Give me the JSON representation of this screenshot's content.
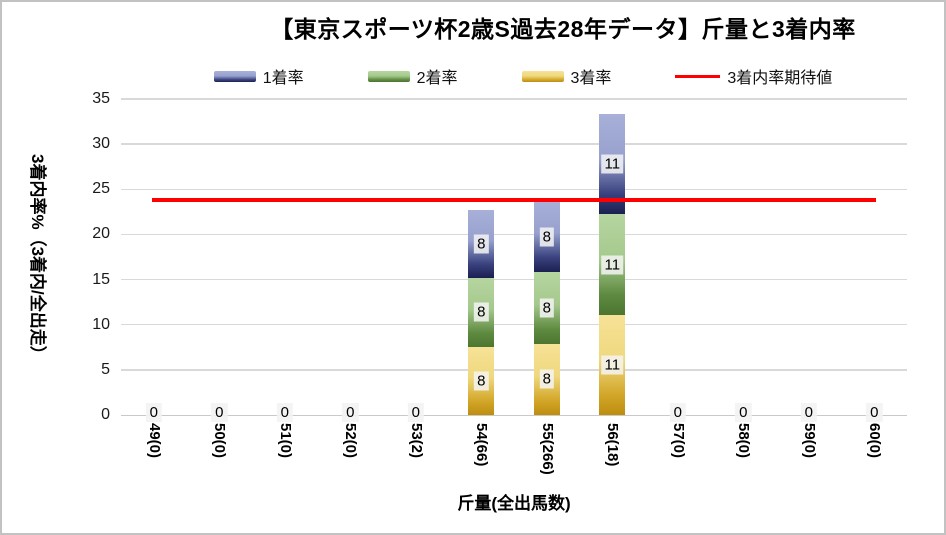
{
  "chart_data": {
    "type": "bar",
    "stacked": true,
    "title": "【東京スポーツ杯2歳S過去28年データ】斤量と3着内率",
    "xlabel": "斤量(全出馬数)",
    "ylabel": "3着内率%（3着内/全出走）",
    "ylim": [
      0,
      35
    ],
    "yticks": [
      0,
      5,
      10,
      15,
      20,
      25,
      30,
      35
    ],
    "grid": true,
    "legend_position": "top",
    "categories": [
      "49(0)",
      "50(0)",
      "51(0)",
      "52(0)",
      "53(2)",
      "54(66)",
      "55(266)",
      "56(18)",
      "57(0)",
      "58(0)",
      "59(0)",
      "60(0)"
    ],
    "series": [
      {
        "name": "3着率",
        "values": [
          0,
          0,
          0,
          0,
          0,
          7.576,
          7.895,
          11.111,
          0,
          0,
          0,
          0
        ],
        "data_labels": [
          "",
          "",
          "",
          "",
          "",
          "8",
          "8",
          "11",
          "",
          "",
          "",
          ""
        ],
        "gradient": [
          "#F7E297",
          "#EFD87E",
          "#D2A628",
          "#BD8D10"
        ]
      },
      {
        "name": "2着率",
        "values": [
          0,
          0,
          0,
          0,
          0,
          7.576,
          7.895,
          11.111,
          0,
          0,
          0,
          0
        ],
        "data_labels": [
          "",
          "",
          "",
          "",
          "",
          "8",
          "8",
          "11",
          "",
          "",
          "",
          ""
        ],
        "gradient": [
          "#B6D5A0",
          "#A5C98D",
          "#5E8A40",
          "#4C7630"
        ]
      },
      {
        "name": "1着率",
        "values": [
          0,
          0,
          0,
          0,
          0,
          7.576,
          7.895,
          11.111,
          0,
          0,
          0,
          0
        ],
        "data_labels": [
          "",
          "",
          "",
          "",
          "",
          "8",
          "8",
          "11",
          "",
          "",
          "",
          ""
        ],
        "gradient": [
          "#A8B0D9",
          "#97A1CD",
          "#39417E",
          "#1B2050"
        ]
      }
    ],
    "legend_order": [
      "1着率",
      "2着率",
      "3着率"
    ],
    "zero_label": "0",
    "expected_line": {
      "name": "3着内率期待値",
      "value": 23.86,
      "color": "#FF0000"
    },
    "colors": {
      "gridline": "#D9D9D9",
      "axis": "#C9C9C9",
      "text": "#000000"
    }
  }
}
